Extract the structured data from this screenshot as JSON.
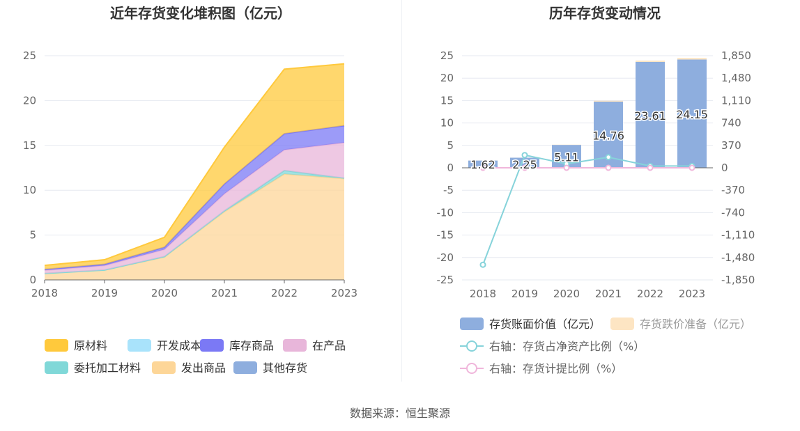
{
  "source": "数据来源：恒生聚源",
  "chart_data": [
    {
      "type": "area",
      "stacked": true,
      "title": "近年存货变化堆积图（亿元）",
      "x": [
        "2018",
        "2019",
        "2020",
        "2021",
        "2022",
        "2023"
      ],
      "yticks": [
        "0",
        "5",
        "10",
        "15",
        "20",
        "25"
      ],
      "ylim": [
        0,
        25
      ],
      "grid": true,
      "legend_position": "bottom",
      "series": [
        {
          "name": "原材料",
          "color": "#ffc93c",
          "values": [
            0.45,
            0.5,
            1.1,
            4.1,
            7.2,
            6.9
          ]
        },
        {
          "name": "开发成本",
          "color": "#a9e3fb",
          "values": [
            0,
            0,
            0,
            0,
            0,
            0
          ]
        },
        {
          "name": "库存商品",
          "color": "#7b79f5",
          "values": [
            0.1,
            0.15,
            0.25,
            1.1,
            1.8,
            1.9
          ]
        },
        {
          "name": "在产品",
          "color": "#e8b6da",
          "values": [
            0.35,
            0.5,
            0.8,
            1.9,
            2.3,
            3.95
          ]
        },
        {
          "name": "委托加工材料",
          "color": "#80d8d8",
          "values": [
            0,
            0,
            0.05,
            0.1,
            0.4,
            0.05
          ]
        },
        {
          "name": "发出商品",
          "color": "#fdd698",
          "values": [
            0.72,
            1.1,
            2.55,
            7.6,
            11.8,
            11.3
          ]
        },
        {
          "name": "其他存货",
          "color": "#8eaede",
          "values": [
            0,
            0,
            0,
            0,
            0,
            0
          ]
        }
      ]
    },
    {
      "type": "bar",
      "title": "历年存货变动情况",
      "categories": [
        "2018",
        "2019",
        "2020",
        "2021",
        "2022",
        "2023"
      ],
      "left_yticks": [
        "25",
        "20",
        "15",
        "10",
        "5",
        "0",
        "-5",
        "-10",
        "-15",
        "-20",
        "-25"
      ],
      "right_yticks": [
        "1,850",
        "1,480",
        "1,110",
        "740",
        "370",
        "0",
        "-370",
        "-740",
        "-1,110",
        "-1,480",
        "-1,850"
      ],
      "ylim": [
        -25,
        25
      ],
      "y2lim": [
        -1850,
        1850
      ],
      "grid": true,
      "legend_position": "bottom",
      "series": [
        {
          "name": "存货账面价值（亿元）",
          "color": "#8eaede",
          "kind": "bar",
          "axis": "left",
          "values": [
            1.62,
            2.25,
            5.11,
            14.76,
            23.61,
            24.15
          ],
          "labels": [
            "1.62",
            "2.25",
            "5.11",
            "14.76",
            "23.61",
            "24.15"
          ]
        },
        {
          "name": "存货跌价准备（亿元）",
          "color": "#fde5c3",
          "kind": "bar-stack",
          "axis": "left",
          "values": [
            0.01,
            0.01,
            0.05,
            0.2,
            0.3,
            0.35
          ]
        },
        {
          "name": "右轴：存货占净资产比例（%）",
          "color": "#86d3da",
          "kind": "line",
          "axis": "right",
          "values": [
            -1600,
            210,
            65,
            175,
            30,
            30
          ]
        },
        {
          "name": "右轴：存货计提比例（%）",
          "color": "#f0b6db",
          "kind": "line",
          "axis": "right",
          "values": [
            0,
            0,
            0,
            0,
            0,
            0
          ]
        }
      ]
    }
  ]
}
